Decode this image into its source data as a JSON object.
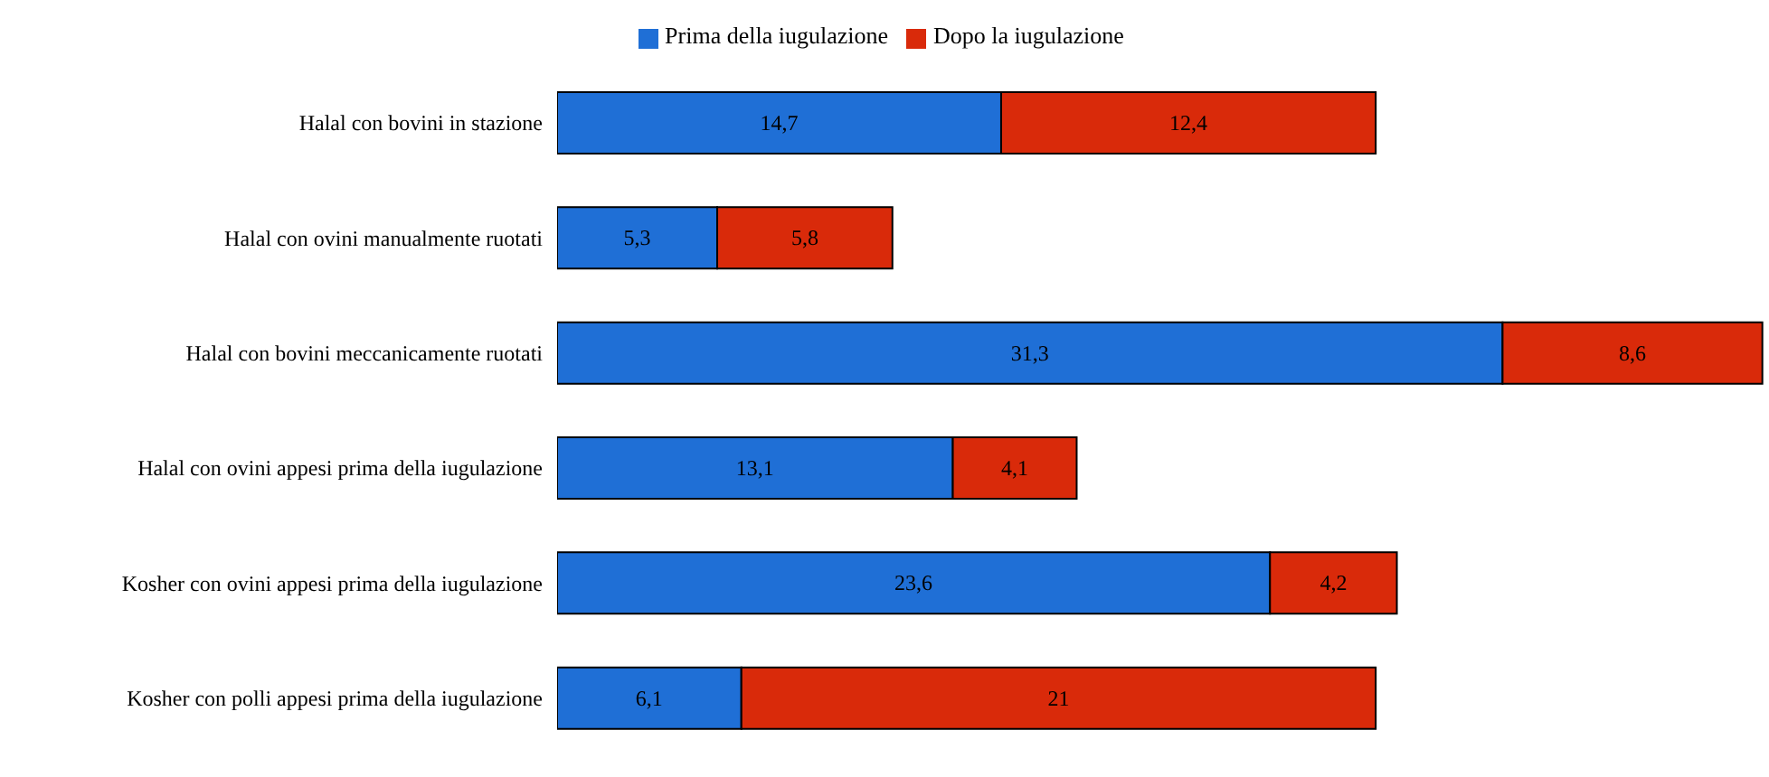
{
  "chart_data": {
    "type": "bar",
    "orientation": "horizontal",
    "stacked": true,
    "legend": "top",
    "tick_labels": "y",
    "xlim": [
      0,
      40
    ],
    "categories": [
      "Halal con bovini in stazione",
      "Halal con ovini manualmente ruotati",
      "Halal con bovini meccanicamente ruotati",
      "Halal con ovini appesi prima della iugulazione",
      "Kosher con ovini appesi prima della iugulazione",
      "Kosher con polli appesi prima della iugulazione"
    ],
    "series": [
      {
        "name": "Prima della iugulazione",
        "color": "#1f6fd6",
        "values": [
          14.7,
          5.3,
          31.3,
          13.1,
          23.6,
          6.1
        ],
        "value_labels": [
          "14,7",
          "5,3",
          "31,3",
          "13,1",
          "23,6",
          "6,1"
        ]
      },
      {
        "name": "Dopo la iugulazione",
        "color": "#d92a0a",
        "values": [
          12.4,
          5.8,
          8.6,
          4.1,
          4.2,
          21
        ],
        "value_labels": [
          "12,4",
          "5,8",
          "8,6",
          "4,1",
          "4,2",
          "21"
        ]
      }
    ]
  }
}
